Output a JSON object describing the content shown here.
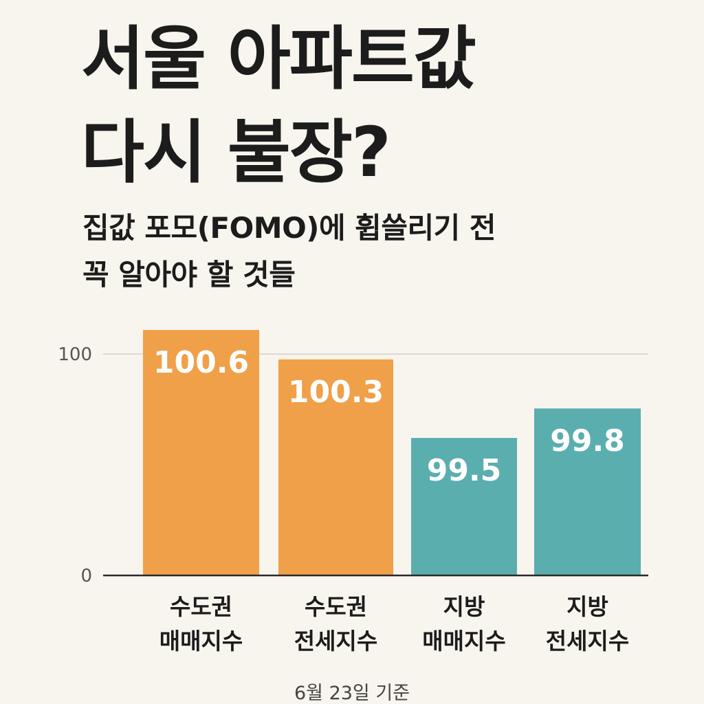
{
  "header": {
    "title_lines": [
      "서울 아파트값",
      "다시 불장?"
    ],
    "subtitle_lines": [
      "집값 포모(FOMO)에 휩쓸리기 전",
      "꼭 알아야 할 것들"
    ]
  },
  "footnote": "6월 23일 기준",
  "colors": {
    "background": "#f8f4ee",
    "capital_bar": "#f0a049",
    "regional_bar": "#5aaeae",
    "gridline": "#dedad3",
    "baseline": "#2a2a2a"
  },
  "chart_data": {
    "type": "bar",
    "title": "",
    "xlabel": "",
    "ylabel": "",
    "ylim": [
      0,
      100
    ],
    "yticks": [
      {
        "value": 0,
        "label": "0"
      },
      {
        "value": 100,
        "label": "100"
      }
    ],
    "grid": true,
    "categories": [
      {
        "lines": [
          "수도권",
          "매매지수"
        ],
        "color_key": "capital_bar"
      },
      {
        "lines": [
          "수도권",
          "전세지수"
        ],
        "color_key": "capital_bar"
      },
      {
        "lines": [
          "지방",
          "매매지수"
        ],
        "color_key": "regional_bar"
      },
      {
        "lines": [
          "지방",
          "전세지수"
        ],
        "color_key": "regional_bar"
      }
    ],
    "values": [
      100.6,
      100.3,
      99.5,
      99.8
    ],
    "value_labels": [
      "100.6",
      "100.3",
      "99.5",
      "99.8"
    ]
  }
}
